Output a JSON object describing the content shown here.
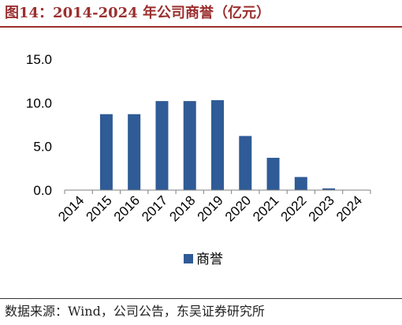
{
  "header": {
    "title": "图14：2014-2024 年公司商誉（亿元）"
  },
  "footer": {
    "source": "数据来源：Wind，公司公告，东吴证券研究所"
  },
  "colors": {
    "title": "#9b2f2f",
    "bar": "#2f5b96",
    "axis": "#808080"
  },
  "chart_data": {
    "type": "bar",
    "categories": [
      "2014",
      "2015",
      "2016",
      "2017",
      "2018",
      "2019",
      "2020",
      "2021",
      "2022",
      "2023",
      "2024"
    ],
    "series": [
      {
        "name": "商誉",
        "values": [
          0,
          8.7,
          8.7,
          10.2,
          10.2,
          10.3,
          6.2,
          3.7,
          1.5,
          0.2,
          0
        ]
      }
    ],
    "yticks": [
      "0.0",
      "5.0",
      "10.0",
      "15.0"
    ],
    "ylim": [
      0,
      15
    ],
    "grid": false,
    "legend": "bottom-center",
    "xlabel": "",
    "ylabel": ""
  }
}
